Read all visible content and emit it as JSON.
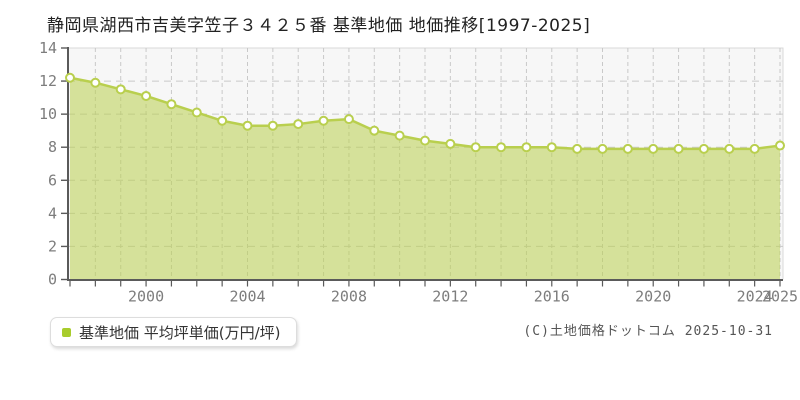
{
  "title": "静岡県湖西市吉美字笠子３４２５番 基準地価 地価推移[1997-2025]",
  "legend": {
    "label": "基準地価 平均坪単価(万円/坪)",
    "marker_color": "#a8cc2c"
  },
  "copyright": "(C)土地価格ドットコム 2025-10-31",
  "chart_data": {
    "type": "area",
    "title": "静岡県湖西市吉美字笠子３４２５番 基準地価 地価推移[1997-2025]",
    "x": [
      1997,
      1998,
      1999,
      2000,
      2001,
      2002,
      2003,
      2004,
      2005,
      2006,
      2007,
      2008,
      2009,
      2010,
      2011,
      2012,
      2013,
      2014,
      2015,
      2016,
      2017,
      2018,
      2019,
      2020,
      2021,
      2022,
      2023,
      2024,
      2025
    ],
    "series": [
      {
        "name": "基準地価 平均坪単価(万円/坪)",
        "values": [
          12.2,
          11.9,
          11.5,
          11.1,
          10.6,
          10.1,
          9.6,
          9.3,
          9.3,
          9.4,
          9.6,
          9.7,
          9.0,
          8.7,
          8.4,
          8.2,
          8.0,
          8.0,
          8.0,
          8.0,
          7.9,
          7.9,
          7.9,
          7.9,
          7.9,
          7.9,
          7.9,
          7.9,
          8.1
        ]
      }
    ],
    "ylabel": "",
    "xlabel": "",
    "ylim": [
      0,
      14
    ],
    "yticks": [
      0,
      2,
      4,
      6,
      8,
      10,
      12,
      14
    ],
    "xtick_labels": [
      "2000",
      "2004",
      "2008",
      "2012",
      "2016",
      "2020",
      "2024",
      "2025"
    ],
    "grid": true,
    "legend_position": "bottom-left",
    "colors": {
      "line": "#b9cf4e",
      "fill": "rgba(185,207,78,0.55)",
      "marker_fill": "#ffffff",
      "grid": "#c9c9c9",
      "plot_border": "#d9d9d9",
      "axis": "#5a5a5a",
      "tick_label": "#7d7d7d",
      "plot_bg": "#f7f7f7"
    }
  }
}
